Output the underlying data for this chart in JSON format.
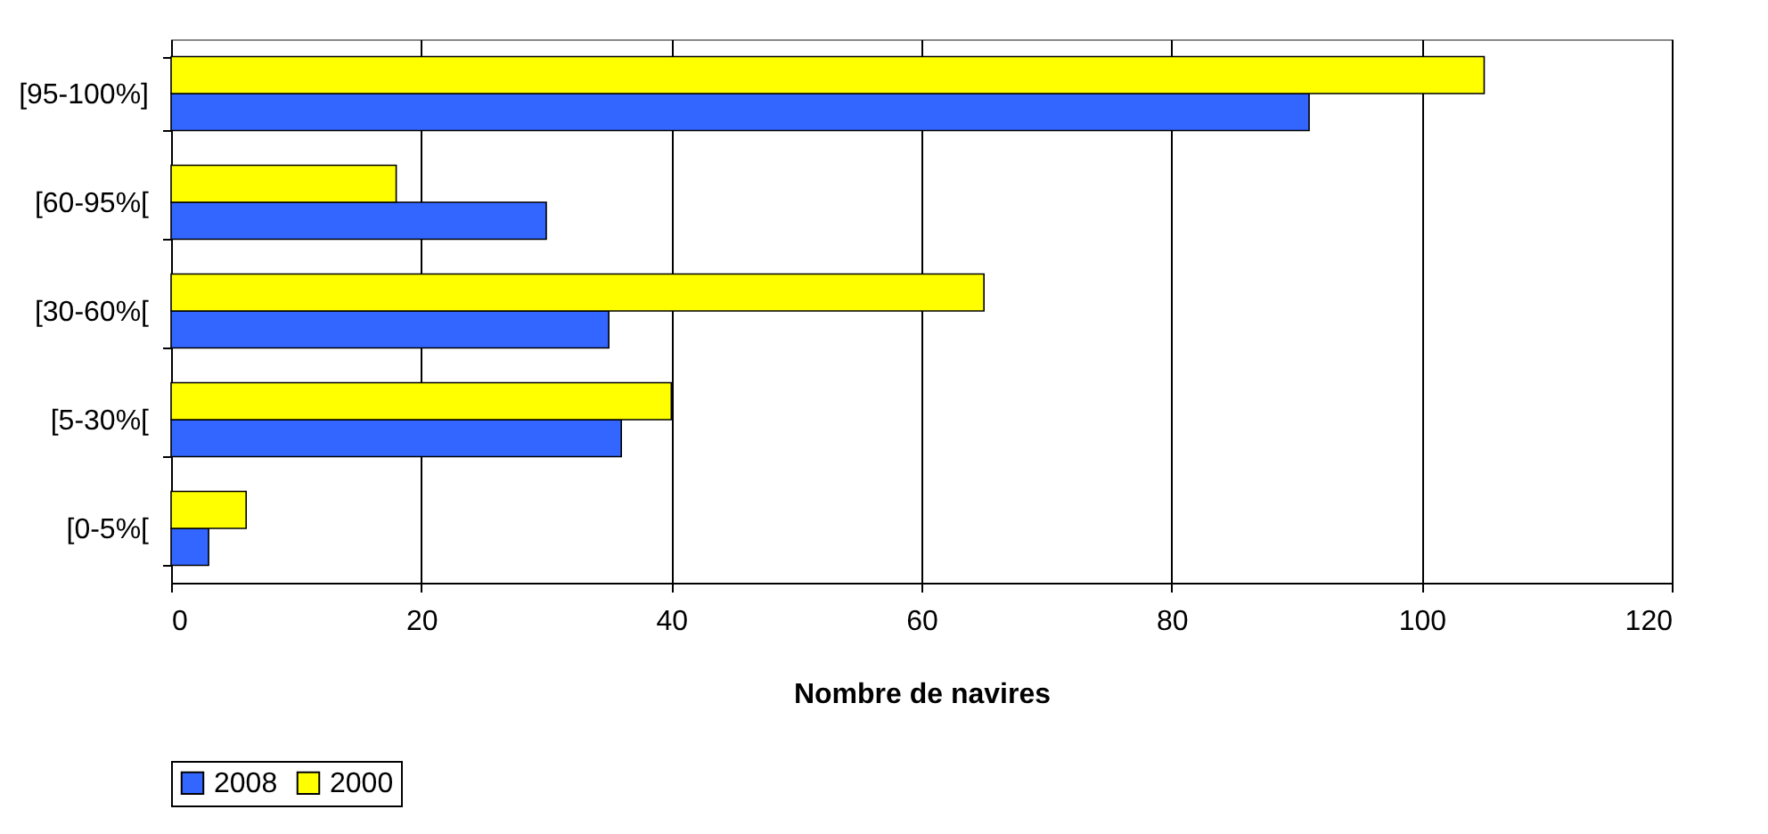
{
  "chart_data": {
    "type": "bar",
    "orientation": "horizontal",
    "categories": [
      "[95-100%]",
      "[60-95%[",
      "[30-60%[",
      "[5-30%[",
      "[0-5%["
    ],
    "series": [
      {
        "name": "2008",
        "color": "#3366ff",
        "values": [
          91,
          30,
          35,
          36,
          3
        ]
      },
      {
        "name": "2000",
        "color": "#ffff00",
        "values": [
          105,
          18,
          65,
          40,
          6
        ]
      }
    ],
    "xlabel": "Nombre de navires",
    "xlim": [
      0,
      120
    ],
    "xticks": [
      0,
      20,
      40,
      60,
      80,
      100,
      120
    ],
    "grid": "x",
    "legend": "bottom"
  }
}
